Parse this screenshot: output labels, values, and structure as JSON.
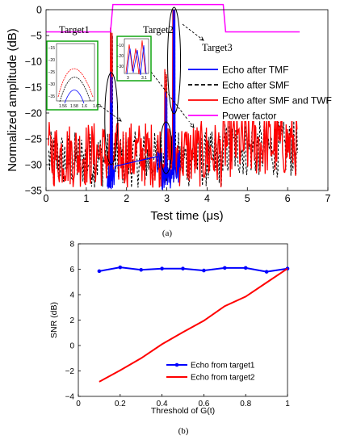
{
  "chart_data": [
    {
      "type": "line",
      "panel_label": "(a)",
      "xlabel": "Test time (μs)",
      "ylabel": "Normalized amplitude (dB)",
      "xlim": [
        0,
        7
      ],
      "ylim": [
        -35,
        0
      ],
      "xticks": [
        0,
        1,
        2,
        3,
        4,
        5,
        6,
        7
      ],
      "yticks": [
        0,
        -5,
        -10,
        -15,
        -20,
        -25,
        -30,
        -35
      ],
      "grid": false,
      "legend_position": "right",
      "series": [
        {
          "name": "Echo after TMF",
          "color": "#0000ff",
          "style": "solid"
        },
        {
          "name": "Echo after SMF",
          "color": "#000000",
          "style": "dashed"
        },
        {
          "name": "Echo after SMF and TWF",
          "color": "#ff0000",
          "style": "solid"
        },
        {
          "name": "Power factor",
          "color": "#ff00ff",
          "style": "solid",
          "x": [
            0,
            1.6,
            1.66,
            3.5,
            4.4,
            4.46,
            6.3
          ],
          "y": [
            -4.3,
            -4.3,
            1,
            1,
            1,
            -4.3,
            -4.3
          ]
        }
      ],
      "peaks": [
        {
          "x": 1.62,
          "y": -9.5
        },
        {
          "x": 2.98,
          "y": -17.5
        },
        {
          "x": 3.17,
          "y": 0
        }
      ],
      "annotations": [
        "Target1",
        "Target2",
        "Target3"
      ],
      "insets": [
        {
          "name": "inset-target1",
          "xticks": [
            "1.56",
            "1.58",
            "1.6",
            "1.62"
          ],
          "yticks": [
            "-15",
            "-20",
            "-25",
            "-30",
            "-35"
          ]
        },
        {
          "name": "inset-target2",
          "xticks": [
            "3",
            "3.1"
          ],
          "yticks": [
            "-10",
            "-20",
            "-30"
          ]
        }
      ]
    },
    {
      "type": "line",
      "panel_label": "(b)",
      "xlabel": "Threshold of G(t)",
      "ylabel": "SNR (dB)",
      "xlim": [
        0,
        1
      ],
      "ylim": [
        -4,
        8
      ],
      "xticks": [
        0,
        0.2,
        0.4,
        0.6,
        0.8,
        1
      ],
      "yticks": [
        8,
        6,
        4,
        2,
        0,
        -2,
        -4
      ],
      "grid": false,
      "legend_position": "bottom-right",
      "x": [
        0.1,
        0.2,
        0.3,
        0.4,
        0.5,
        0.6,
        0.7,
        0.8,
        0.9,
        1.0
      ],
      "series": [
        {
          "name": "Echo from target1",
          "color": "#0000ff",
          "marker": "dot",
          "values": [
            5.85,
            6.15,
            5.95,
            6.05,
            6.05,
            5.9,
            6.1,
            6.1,
            5.8,
            6.05
          ]
        },
        {
          "name": "Echo from target2",
          "color": "#ff0000",
          "marker": "none",
          "values": [
            -2.85,
            -1.95,
            -1.0,
            0.1,
            1.05,
            1.95,
            3.1,
            3.85,
            4.95,
            6.05
          ]
        }
      ]
    }
  ]
}
